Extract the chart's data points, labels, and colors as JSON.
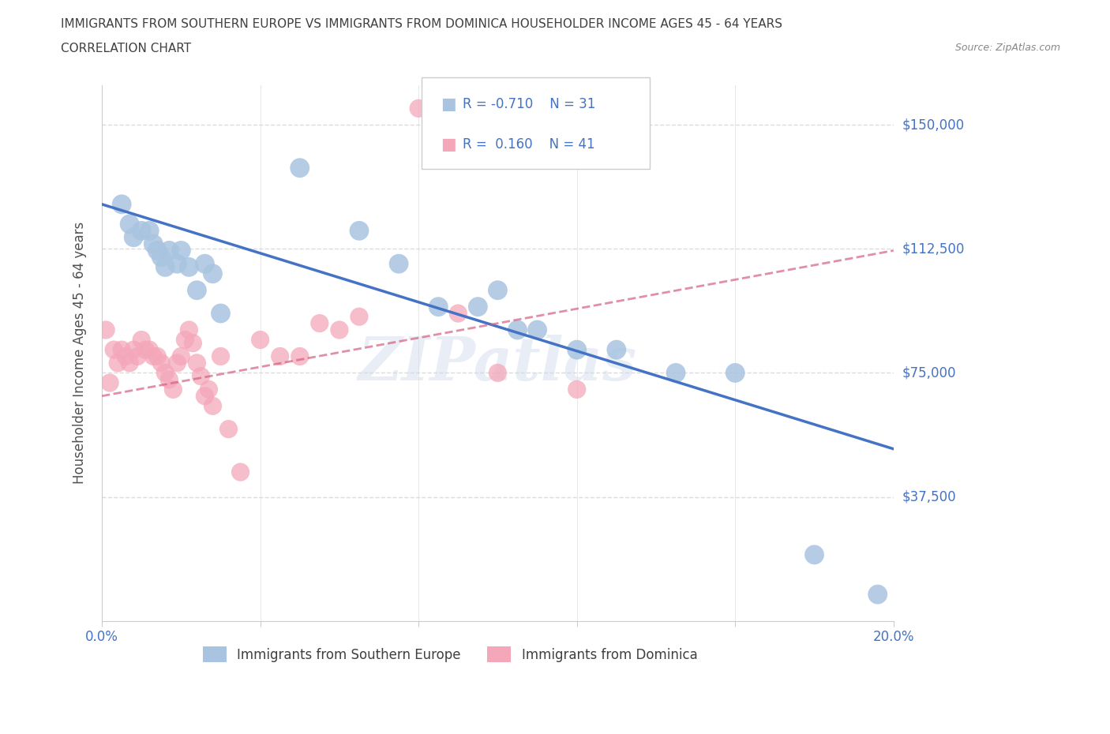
{
  "title_line1": "IMMIGRANTS FROM SOUTHERN EUROPE VS IMMIGRANTS FROM DOMINICA HOUSEHOLDER INCOME AGES 45 - 64 YEARS",
  "title_line2": "CORRELATION CHART",
  "source_text": "Source: ZipAtlas.com",
  "ylabel": "Householder Income Ages 45 - 64 years",
  "blue_color": "#a8c4e0",
  "blue_line_color": "#4472c4",
  "pink_color": "#f4a7b9",
  "pink_line_color": "#d46080",
  "blue_R": -0.71,
  "blue_N": 31,
  "pink_R": 0.16,
  "pink_N": 41,
  "xlim": [
    0.0,
    0.2
  ],
  "ylim": [
    0,
    162000
  ],
  "yticks": [
    37500,
    75000,
    112500,
    150000
  ],
  "ytick_labels": [
    "$37,500",
    "$75,000",
    "$112,500",
    "$150,000"
  ],
  "xticks": [
    0.0,
    0.04,
    0.08,
    0.12,
    0.16,
    0.2
  ],
  "xtick_labels": [
    "0.0%",
    "",
    "",
    "",
    "",
    "20.0%"
  ],
  "blue_x": [
    0.005,
    0.007,
    0.008,
    0.01,
    0.012,
    0.013,
    0.014,
    0.015,
    0.016,
    0.017,
    0.019,
    0.02,
    0.022,
    0.024,
    0.026,
    0.028,
    0.03,
    0.05,
    0.065,
    0.075,
    0.085,
    0.095,
    0.1,
    0.105,
    0.11,
    0.12,
    0.13,
    0.145,
    0.16,
    0.18,
    0.196
  ],
  "blue_y": [
    126000,
    120000,
    116000,
    118000,
    118000,
    114000,
    112000,
    110000,
    107000,
    112000,
    108000,
    112000,
    107000,
    100000,
    108000,
    105000,
    93000,
    137000,
    118000,
    108000,
    95000,
    95000,
    100000,
    88000,
    88000,
    82000,
    82000,
    75000,
    75000,
    20000,
    8000
  ],
  "pink_x": [
    0.001,
    0.002,
    0.003,
    0.004,
    0.005,
    0.006,
    0.007,
    0.008,
    0.009,
    0.01,
    0.011,
    0.012,
    0.013,
    0.014,
    0.015,
    0.016,
    0.017,
    0.018,
    0.019,
    0.02,
    0.021,
    0.022,
    0.023,
    0.024,
    0.025,
    0.026,
    0.027,
    0.028,
    0.03,
    0.032,
    0.035,
    0.04,
    0.045,
    0.05,
    0.055,
    0.06,
    0.065,
    0.08,
    0.09,
    0.1,
    0.12
  ],
  "pink_y": [
    88000,
    72000,
    82000,
    78000,
    82000,
    80000,
    78000,
    82000,
    80000,
    85000,
    82000,
    82000,
    80000,
    80000,
    78000,
    75000,
    73000,
    70000,
    78000,
    80000,
    85000,
    88000,
    84000,
    78000,
    74000,
    68000,
    70000,
    65000,
    80000,
    58000,
    45000,
    85000,
    80000,
    80000,
    90000,
    88000,
    92000,
    155000,
    93000,
    75000,
    70000
  ],
  "blue_trend_x": [
    0.0,
    0.2
  ],
  "blue_trend_y": [
    126000,
    52000
  ],
  "pink_trend_x": [
    0.0,
    0.2
  ],
  "pink_trend_y": [
    68000,
    112000
  ],
  "watermark": "ZIPatlas",
  "background_color": "#ffffff",
  "grid_color": "#d8d8d8",
  "title_color": "#404040",
  "axis_label_color": "#505050",
  "tick_label_color": "#4472c4",
  "legend_R_color": "#4472c4"
}
